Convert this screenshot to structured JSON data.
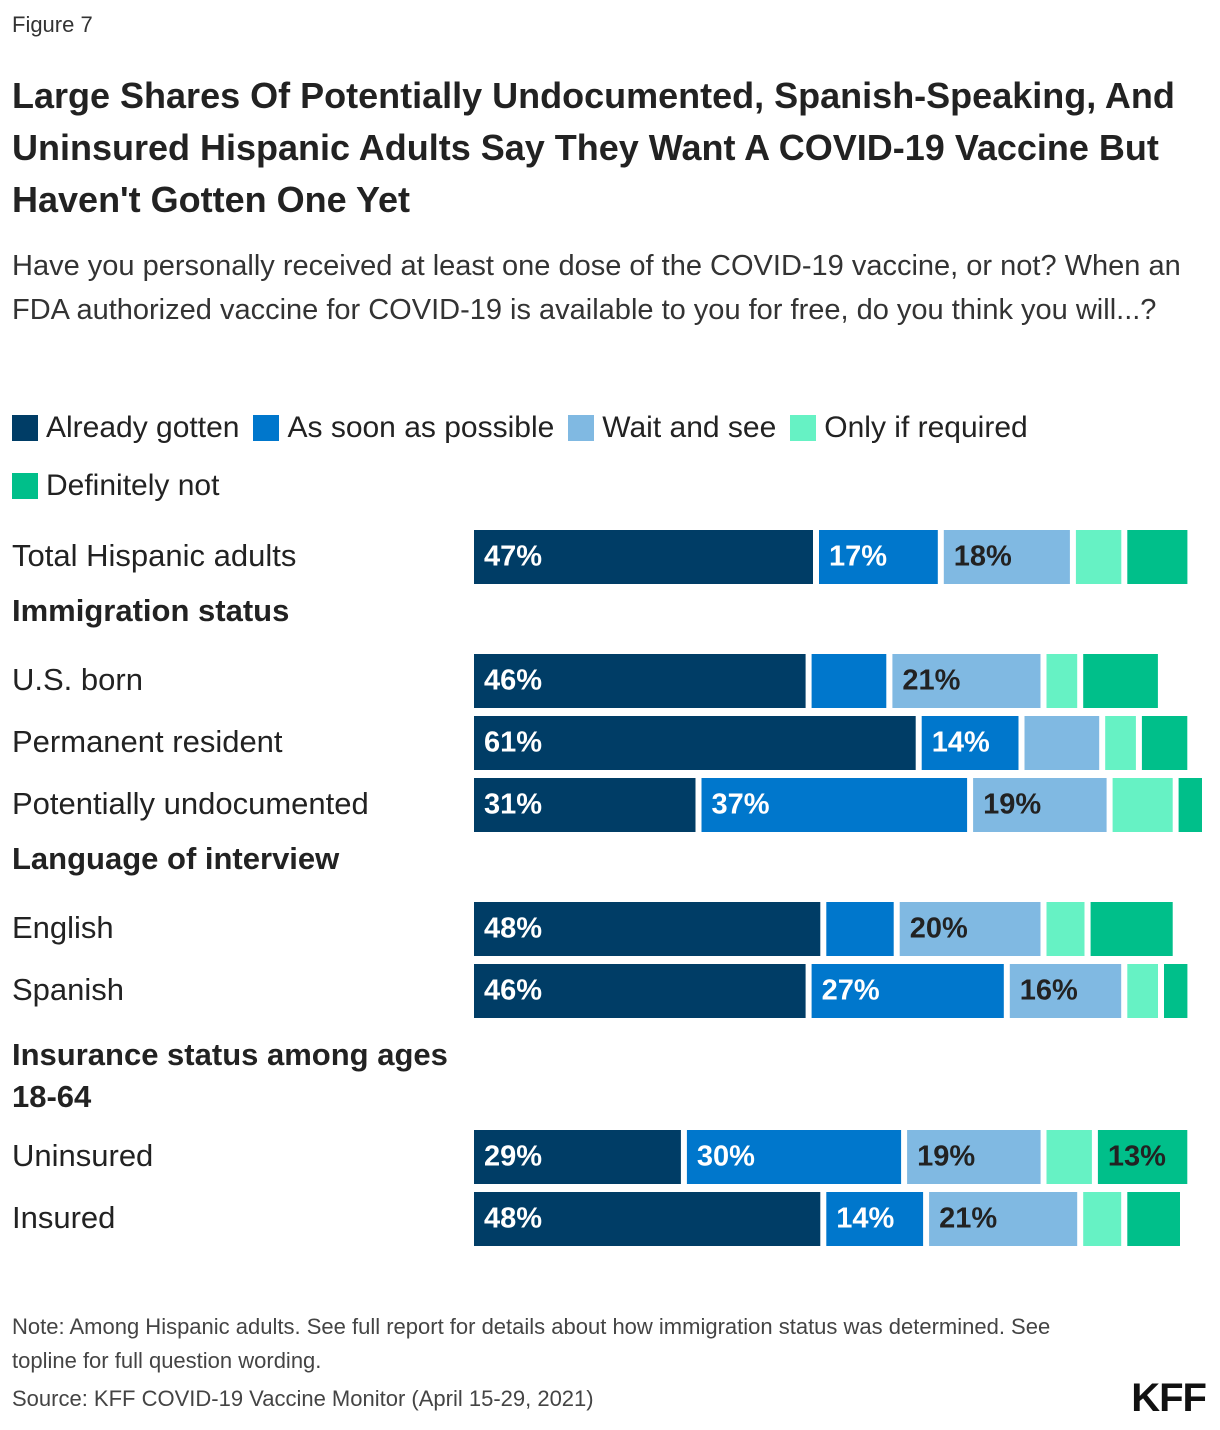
{
  "figure_label": "Figure 7",
  "title": "Large Shares Of Potentially Undocumented, Spanish-Speaking, And Uninsured Hispanic Adults Say They Want A COVID-19 Vaccine But Haven't Gotten One Yet",
  "subtitle": "Have you personally received at least one dose of the COVID-19 vaccine, or not? When an FDA authorized vaccine for COVID-19 is available to you for free, do you think you will...?",
  "note": "Note: Among Hispanic adults. See full report for details about how immigration status was determined. See topline for full question wording.",
  "source": "Source: KFF COVID-19 Vaccine Monitor (April 15-29, 2021)",
  "logo": "KFF",
  "chart_data": {
    "type": "bar",
    "orientation": "horizontal",
    "stacked": true,
    "title": "Large Shares Of Potentially Undocumented, Spanish-Speaking, And Uninsured Hispanic Adults Say They Want A COVID-19 Vaccine But Haven't Gotten One Yet",
    "xlabel": "",
    "ylabel": "",
    "xlim": [
      0,
      100
    ],
    "legend_position": "top",
    "series": [
      {
        "name": "Already gotten",
        "color": "#003d66",
        "label_color": "#ffffff"
      },
      {
        "name": "As soon as possible",
        "color": "#0077cc",
        "label_color": "#ffffff"
      },
      {
        "name": "Wait and see",
        "color": "#80b9e2",
        "label_color": "#222222"
      },
      {
        "name": "Only if required",
        "color": "#66f2c4",
        "label_color": "#222222"
      },
      {
        "name": "Definitely not",
        "color": "#00bf8a",
        "label_color": "#222222"
      }
    ],
    "rows": [
      {
        "type": "bar",
        "label": "Total Hispanic adults",
        "values": [
          47,
          17,
          18,
          7,
          9
        ],
        "labels": [
          "47%",
          "17%",
          "18%",
          "",
          ""
        ]
      },
      {
        "type": "header",
        "label": "Immigration status"
      },
      {
        "type": "bar",
        "label": "U.S. born",
        "values": [
          46,
          11,
          21,
          5,
          11
        ],
        "labels": [
          "46%",
          "",
          "21%",
          "",
          ""
        ]
      },
      {
        "type": "bar",
        "label": "Permanent resident",
        "values": [
          61,
          14,
          11,
          5,
          7
        ],
        "labels": [
          "61%",
          "14%",
          "",
          "",
          ""
        ]
      },
      {
        "type": "bar",
        "label": "Potentially undocumented",
        "values": [
          31,
          37,
          19,
          9,
          4
        ],
        "labels": [
          "31%",
          "37%",
          "19%",
          "",
          ""
        ]
      },
      {
        "type": "header",
        "label": "Language of interview"
      },
      {
        "type": "bar",
        "label": "English",
        "values": [
          48,
          10,
          20,
          6,
          12
        ],
        "labels": [
          "48%",
          "",
          "20%",
          "",
          ""
        ]
      },
      {
        "type": "bar",
        "label": "Spanish",
        "values": [
          46,
          27,
          16,
          5,
          4
        ],
        "labels": [
          "46%",
          "27%",
          "16%",
          "",
          ""
        ]
      },
      {
        "type": "header",
        "label": "Insurance status among ages 18-64"
      },
      {
        "type": "bar",
        "label": "Uninsured",
        "values": [
          29,
          30,
          19,
          7,
          13
        ],
        "labels": [
          "29%",
          "30%",
          "19%",
          "",
          "13%"
        ]
      },
      {
        "type": "bar",
        "label": "Insured",
        "values": [
          48,
          14,
          21,
          6,
          8
        ],
        "labels": [
          "48%",
          "14%",
          "21%",
          "",
          ""
        ]
      }
    ]
  }
}
